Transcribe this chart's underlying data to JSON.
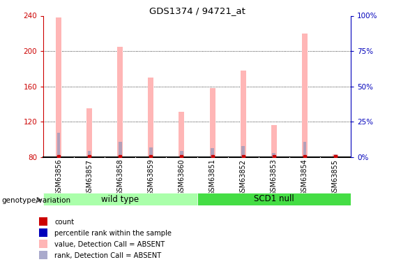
{
  "title": "GDS1374 / 94721_at",
  "samples": [
    "GSM63856",
    "GSM63857",
    "GSM63858",
    "GSM63859",
    "GSM63860",
    "GSM63851",
    "GSM63852",
    "GSM63853",
    "GSM63854",
    "GSM63855"
  ],
  "value_heights": [
    238,
    135,
    205,
    170,
    131,
    158,
    178,
    116,
    220,
    83
  ],
  "rank_heights": [
    108,
    87,
    97,
    91,
    87,
    90,
    93,
    85,
    97,
    83
  ],
  "y_min": 80,
  "y_max": 240,
  "y_ticks_left": [
    80,
    120,
    160,
    200,
    240
  ],
  "right_y_labels": [
    "0%",
    "25%",
    "50%",
    "75%",
    "100%"
  ],
  "pink_color": "#FFB6B6",
  "blue_color": "#9999BB",
  "red_color": "#CC0000",
  "left_axis_color": "#CC0000",
  "right_axis_color": "#0000BB",
  "group1_label": "wild type",
  "group2_label": "SCD1 null",
  "group1_color": "#AAFFAA",
  "group2_color": "#44DD44",
  "genotype_label": "genotype/variation",
  "legend_colors": [
    "#CC0000",
    "#0000BB",
    "#FFB6B6",
    "#AAAACC"
  ],
  "legend_labels": [
    "count",
    "percentile rank within the sample",
    "value, Detection Call = ABSENT",
    "rank, Detection Call = ABSENT"
  ],
  "tick_area_color": "#C8C8C8",
  "bar_width": 0.18
}
